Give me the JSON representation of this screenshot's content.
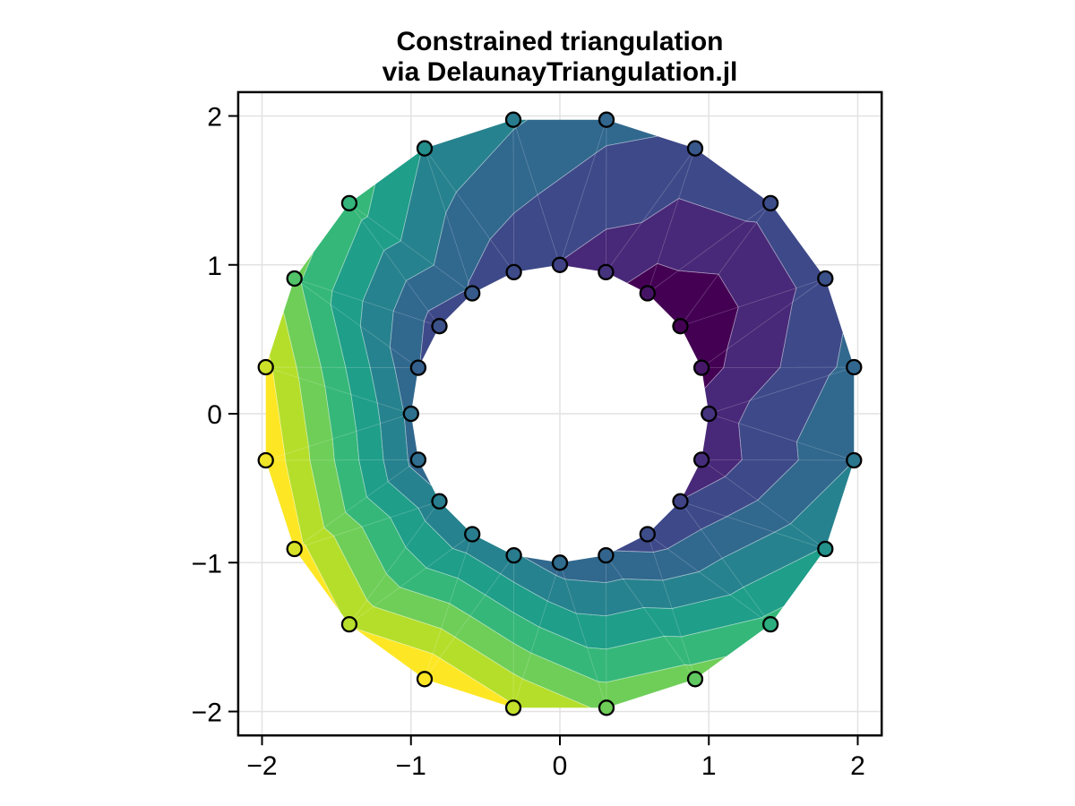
{
  "title": {
    "text": "Constrained triangulation\nvia DelaunayTriangulation.jl"
  },
  "axes": {
    "x": {
      "tick_labels": [
        "−2",
        "−1",
        "0",
        "1",
        "2"
      ],
      "tick_values": [
        -2,
        -1,
        0,
        1,
        2
      ],
      "limits": [
        -2.16,
        2.16
      ]
    },
    "y": {
      "tick_labels": [
        "−2",
        "−1",
        "0",
        "1",
        "2"
      ],
      "tick_values": [
        -2,
        -1,
        0,
        1,
        2
      ],
      "limits": [
        -2.16,
        2.16
      ]
    }
  },
  "style": {
    "background": "#ffffff",
    "grid_color": "#e2e2e2",
    "spine_color": "#000000",
    "tick_color": "#000000",
    "tick_label_color": "#000000",
    "marker_stroke_color": "#000000",
    "mesh_seam_color": "rgba(255,255,255,0.22)",
    "contour_line_color": "rgba(255,255,255,0.45)"
  },
  "chart_data": {
    "type": "tricontourf",
    "title": "Constrained triangulation via DelaunayTriangulation.jl",
    "colormap": "viridis",
    "n_bands": 10,
    "levels": [
      -0.15,
      0.59,
      1.33,
      2.07,
      2.81,
      3.55,
      4.29,
      5.03,
      5.77,
      6.51,
      7.25
    ],
    "band_colors": [
      "#440154",
      "#482878",
      "#3e4989",
      "#31688e",
      "#26828e",
      "#1f9e89",
      "#35b779",
      "#6ece58",
      "#b5de2b",
      "#fde725"
    ],
    "viridis_anchors": [
      {
        "t": 0.0,
        "color": "#440154"
      },
      {
        "t": 0.111,
        "color": "#482878"
      },
      {
        "t": 0.222,
        "color": "#3e4989"
      },
      {
        "t": 0.333,
        "color": "#31688e"
      },
      {
        "t": 0.444,
        "color": "#26828e"
      },
      {
        "t": 0.556,
        "color": "#1f9e89"
      },
      {
        "t": 0.667,
        "color": "#35b779"
      },
      {
        "t": 0.778,
        "color": "#6ece58"
      },
      {
        "t": 0.889,
        "color": "#b5de2b"
      },
      {
        "t": 1.0,
        "color": "#fde725"
      }
    ],
    "outer_boundary": {
      "radius": 2,
      "points": [
        {
          "angle_deg": 9,
          "x": 1.975,
          "y": 0.313,
          "z": 2.3
        },
        {
          "angle_deg": 27,
          "x": 1.782,
          "y": 0.908,
          "z": 1.7
        },
        {
          "angle_deg": 45,
          "x": 1.414,
          "y": 1.414,
          "z": 1.6
        },
        {
          "angle_deg": 63,
          "x": 0.908,
          "y": 1.782,
          "z": 1.9
        },
        {
          "angle_deg": 81,
          "x": 0.313,
          "y": 1.975,
          "z": 2.3
        },
        {
          "angle_deg": 99,
          "x": -0.313,
          "y": 1.975,
          "z": 2.9
        },
        {
          "angle_deg": 117,
          "x": -0.908,
          "y": 1.782,
          "z": 3.5
        },
        {
          "angle_deg": 135,
          "x": -1.414,
          "y": 1.414,
          "z": 4.7
        },
        {
          "angle_deg": 153,
          "x": -1.782,
          "y": 0.908,
          "z": 5.2
        },
        {
          "angle_deg": 171,
          "x": -1.975,
          "y": 0.313,
          "z": 6.7
        },
        {
          "angle_deg": 189,
          "x": -1.975,
          "y": -0.313,
          "z": 7.1
        },
        {
          "angle_deg": 207,
          "x": -1.782,
          "y": -0.908,
          "z": 6.8
        },
        {
          "angle_deg": 225,
          "x": -1.414,
          "y": -1.414,
          "z": 6.45
        },
        {
          "angle_deg": 243,
          "x": -0.908,
          "y": -1.782,
          "z": 7.25
        },
        {
          "angle_deg": 261,
          "x": -0.313,
          "y": -1.975,
          "z": 6.6
        },
        {
          "angle_deg": 279,
          "x": 0.313,
          "y": -1.975,
          "z": 5.6
        },
        {
          "angle_deg": 297,
          "x": 0.908,
          "y": -1.782,
          "z": 5.4
        },
        {
          "angle_deg": 315,
          "x": 1.414,
          "y": -1.414,
          "z": 4.5
        },
        {
          "angle_deg": 333,
          "x": 1.782,
          "y": -0.908,
          "z": 3.6
        },
        {
          "angle_deg": 351,
          "x": 1.975,
          "y": -0.313,
          "z": 2.8
        }
      ]
    },
    "inner_boundary": {
      "radius": 1,
      "points": [
        {
          "angle_deg": 0,
          "x": 1.0,
          "y": 0.0,
          "z": 0.95
        },
        {
          "angle_deg": 18,
          "x": 0.951,
          "y": 0.309,
          "z": 0.3
        },
        {
          "angle_deg": 36,
          "x": 0.809,
          "y": 0.588,
          "z": -0.15
        },
        {
          "angle_deg": 54,
          "x": 0.588,
          "y": 0.809,
          "z": 0.25
        },
        {
          "angle_deg": 72,
          "x": 0.309,
          "y": 0.951,
          "z": 0.95
        },
        {
          "angle_deg": 90,
          "x": 0.0,
          "y": 1.0,
          "z": 1.3
        },
        {
          "angle_deg": 108,
          "x": -0.309,
          "y": 0.951,
          "z": 1.55
        },
        {
          "angle_deg": 126,
          "x": -0.588,
          "y": 0.809,
          "z": 1.95
        },
        {
          "angle_deg": 144,
          "x": -0.809,
          "y": 0.588,
          "z": 1.7
        },
        {
          "angle_deg": 162,
          "x": -0.951,
          "y": 0.309,
          "z": 2.1
        },
        {
          "angle_deg": 180,
          "x": -1.0,
          "y": 0.0,
          "z": 2.6
        },
        {
          "angle_deg": 198,
          "x": -0.951,
          "y": -0.309,
          "z": 2.5
        },
        {
          "angle_deg": 216,
          "x": -0.809,
          "y": -0.588,
          "z": 3.0
        },
        {
          "angle_deg": 234,
          "x": -0.588,
          "y": -0.809,
          "z": 3.0
        },
        {
          "angle_deg": 252,
          "x": -0.309,
          "y": -0.951,
          "z": 2.9
        },
        {
          "angle_deg": 270,
          "x": 0.0,
          "y": -1.0,
          "z": 2.45
        },
        {
          "angle_deg": 288,
          "x": 0.309,
          "y": -0.951,
          "z": 2.2
        },
        {
          "angle_deg": 306,
          "x": 0.588,
          "y": -0.809,
          "z": 1.6
        },
        {
          "angle_deg": 324,
          "x": 0.809,
          "y": -0.588,
          "z": 1.35
        },
        {
          "angle_deg": 342,
          "x": 0.951,
          "y": -0.309,
          "z": 0.8
        }
      ]
    }
  }
}
